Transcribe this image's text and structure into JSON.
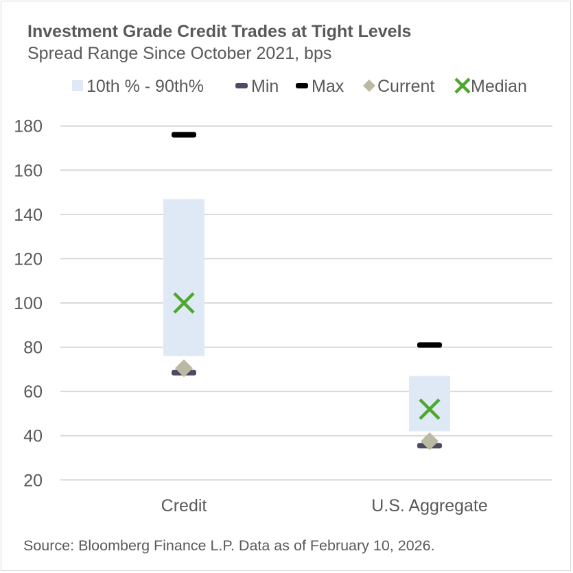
{
  "chart_data": {
    "type": "range",
    "title": "Investment Grade Credit Trades at Tight Levels",
    "subtitle": "Spread Range Since October 2021, bps",
    "source": "Source: Bloomberg Finance L.P. Data as of February 10, 2026.",
    "categories": [
      "Credit",
      "U.S. Aggregate"
    ],
    "legend": [
      "10th % - 90th%",
      "Min",
      "Max",
      "Current",
      "Median"
    ],
    "legend_position": "top",
    "ylim": [
      20,
      180
    ],
    "yticks": [
      20,
      40,
      60,
      80,
      100,
      120,
      140,
      160,
      180
    ],
    "grid": true,
    "series": {
      "p10": [
        76,
        42
      ],
      "p90": [
        147,
        67
      ],
      "min": [
        68.5,
        35.5
      ],
      "max": [
        176,
        81
      ],
      "current": [
        70.5,
        37.5
      ],
      "median": [
        100,
        52
      ]
    },
    "colors": {
      "range": "#dfe9f5",
      "min": "#4f4a64",
      "max": "#000000",
      "current": "#bcb9a2",
      "median": "#4ea72e",
      "grid": "#d9d9d9"
    }
  }
}
